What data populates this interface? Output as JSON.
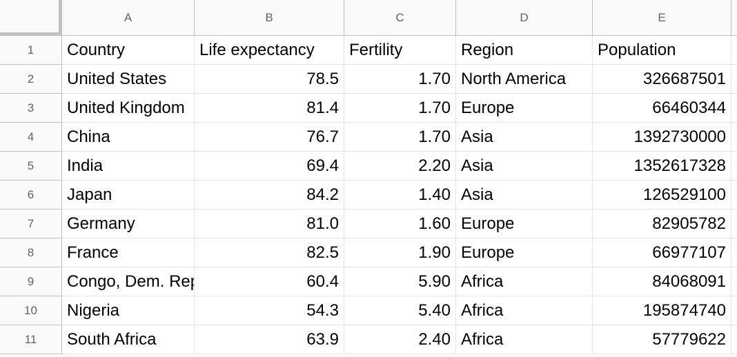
{
  "columns": [
    "A",
    "B",
    "C",
    "D",
    "E"
  ],
  "rows": [
    {
      "number": 1,
      "cells": [
        "Country",
        "Life expectancy",
        "Fertility",
        "Region",
        "Population"
      ]
    },
    {
      "number": 2,
      "cells": [
        "United States",
        "78.5",
        "1.70",
        "North America",
        "326687501"
      ]
    },
    {
      "number": 3,
      "cells": [
        "United Kingdom",
        "81.4",
        "1.70",
        "Europe",
        "66460344"
      ]
    },
    {
      "number": 4,
      "cells": [
        "China",
        "76.7",
        "1.70",
        "Asia",
        "1392730000"
      ]
    },
    {
      "number": 5,
      "cells": [
        "India",
        "69.4",
        "2.20",
        "Asia",
        "1352617328"
      ]
    },
    {
      "number": 6,
      "cells": [
        "Japan",
        "84.2",
        "1.40",
        "Asia",
        "126529100"
      ]
    },
    {
      "number": 7,
      "cells": [
        "Germany",
        "81.0",
        "1.60",
        "Europe",
        "82905782"
      ]
    },
    {
      "number": 8,
      "cells": [
        "France",
        "82.5",
        "1.90",
        "Europe",
        "66977107"
      ]
    },
    {
      "number": 9,
      "cells": [
        "Congo, Dem. Rep.",
        "60.4",
        "5.90",
        "Africa",
        "84068091"
      ]
    },
    {
      "number": 10,
      "cells": [
        "Nigeria",
        "54.3",
        "5.40",
        "Africa",
        "195874740"
      ]
    },
    {
      "number": 11,
      "cells": [
        "South Africa",
        "63.9",
        "2.40",
        "Africa",
        "57779622"
      ]
    }
  ]
}
